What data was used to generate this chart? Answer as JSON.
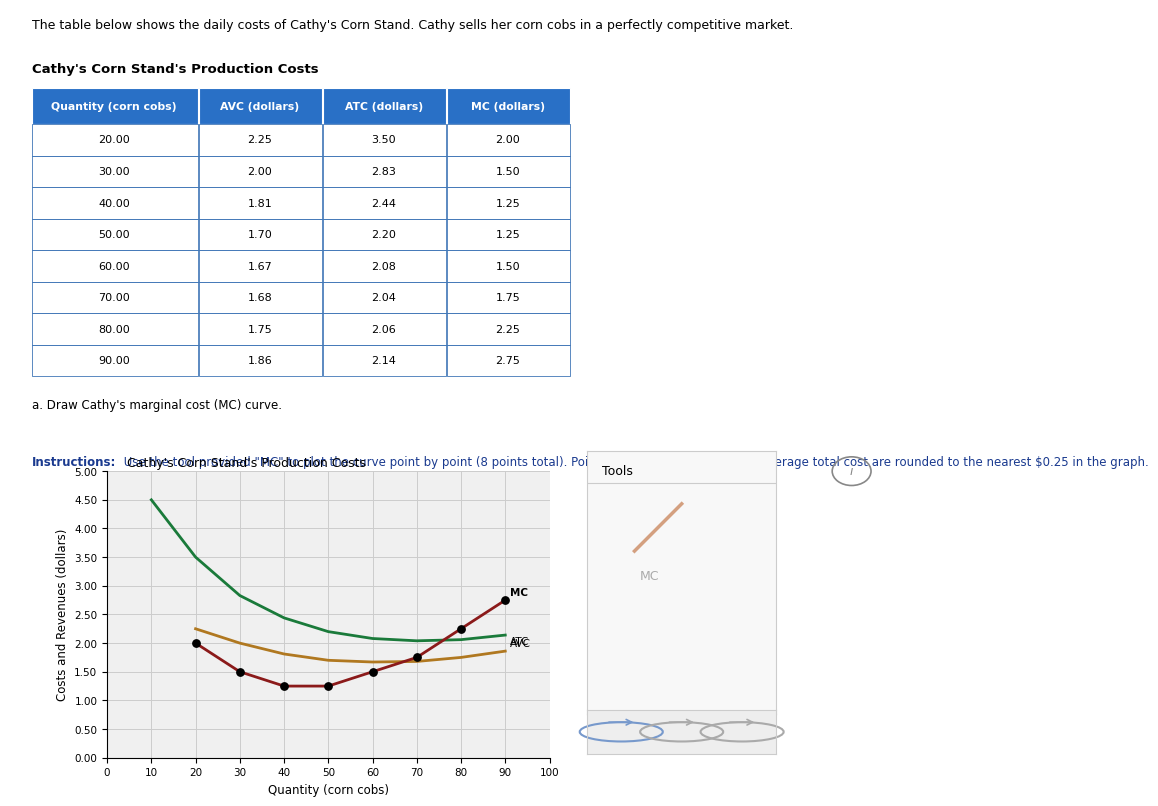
{
  "title_text": "The table below shows the daily costs of Cathy's Corn Stand. Cathy sells her corn cobs in a perfectly competitive market.",
  "table_title": "Cathy's Corn Stand's Production Costs",
  "table_headers": [
    "Quantity (corn cobs)",
    "AVC (dollars)",
    "ATC (dollars)",
    "MC (dollars)"
  ],
  "table_data": [
    [
      20.0,
      2.25,
      3.5,
      2.0
    ],
    [
      30.0,
      2.0,
      2.83,
      1.5
    ],
    [
      40.0,
      1.81,
      2.44,
      1.25
    ],
    [
      50.0,
      1.7,
      2.2,
      1.25
    ],
    [
      60.0,
      1.67,
      2.08,
      1.5
    ],
    [
      70.0,
      1.68,
      2.04,
      1.75
    ],
    [
      80.0,
      1.75,
      2.06,
      2.25
    ],
    [
      90.0,
      1.86,
      2.14,
      2.75
    ]
  ],
  "instruction_a": "a. Draw Cathy's marginal cost (MC) curve.",
  "instruction_bold": "Instructions:",
  "instruction_rest": " Use the tool provided \"MC\" to plot the curve point by point (8 points total). Points for average variable and average total cost are rounded to the nearest $0.25 in the graph.",
  "chart_title": "Cathy's Corn Stand's Production Costs",
  "ylabel": "Costs and Revenues (dollars)",
  "xlabel": "Quantity (corn cobs)",
  "quantity": [
    20,
    30,
    40,
    50,
    60,
    70,
    80,
    90
  ],
  "avc_actual": [
    2.25,
    2.0,
    1.81,
    1.7,
    1.67,
    1.68,
    1.75,
    1.86
  ],
  "atc_actual": [
    3.5,
    2.83,
    2.44,
    2.2,
    2.08,
    2.04,
    2.06,
    2.14
  ],
  "atc_extended": [
    4.5,
    3.5,
    2.83,
    2.44,
    2.2,
    2.08,
    2.04,
    2.06,
    2.14
  ],
  "qty_extended": [
    10,
    20,
    30,
    40,
    50,
    60,
    70,
    80,
    90
  ],
  "mc": [
    2.0,
    1.5,
    1.25,
    1.25,
    1.5,
    1.75,
    2.25,
    2.75
  ],
  "mc_color": "#8B1A1A",
  "atc_color": "#1a7a3a",
  "avc_color": "#b07820",
  "dot_color": "#000000",
  "ylim": [
    0,
    5.0
  ],
  "xlim": [
    0,
    100
  ],
  "yticks": [
    0.0,
    0.5,
    1.0,
    1.5,
    2.0,
    2.5,
    3.0,
    3.5,
    4.0,
    4.5,
    5.0
  ],
  "xticks": [
    0,
    10,
    20,
    30,
    40,
    50,
    60,
    70,
    80,
    90,
    100
  ],
  "grid_color": "#cccccc",
  "background_color": "#f0f0f0",
  "header_bg": "#2970C6",
  "table_border": "#1a5ba8"
}
